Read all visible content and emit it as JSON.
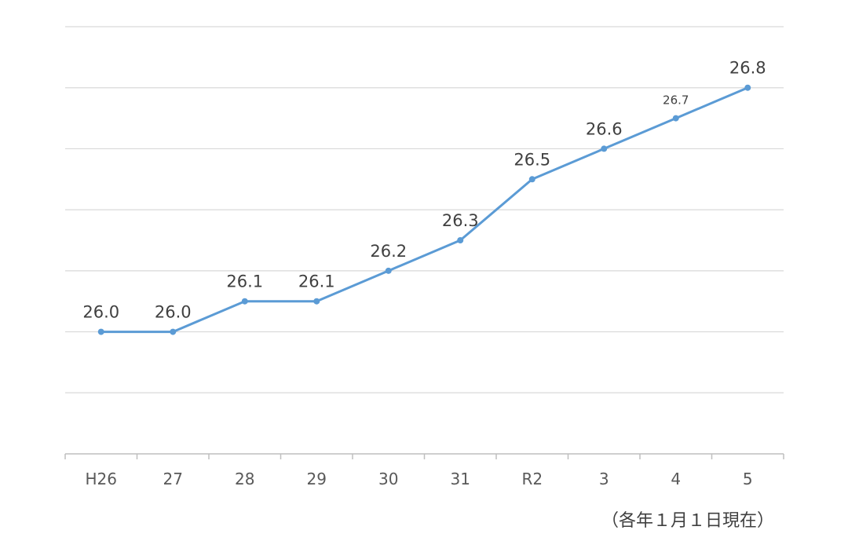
{
  "chart_data": {
    "type": "line",
    "categories": [
      "H26",
      "27",
      "28",
      "29",
      "30",
      "31",
      "R2",
      "3",
      "4",
      "5"
    ],
    "series": [
      {
        "values": [
          26.0,
          26.0,
          26.1,
          26.1,
          26.2,
          26.3,
          26.5,
          26.6,
          26.7,
          26.8
        ],
        "color": "#5b9bd5"
      }
    ],
    "data_labels": [
      "26.0",
      "26.0",
      "26.1",
      "26.1",
      "26.2",
      "26.3",
      "26.5",
      "26.6",
      "26.7",
      "26.8"
    ],
    "ylim": [
      25.6,
      27.0
    ],
    "ytick_step": 0.2,
    "grid": true,
    "gridline_color": "#d9d9d9",
    "note": "（各年１月１日現在）"
  }
}
